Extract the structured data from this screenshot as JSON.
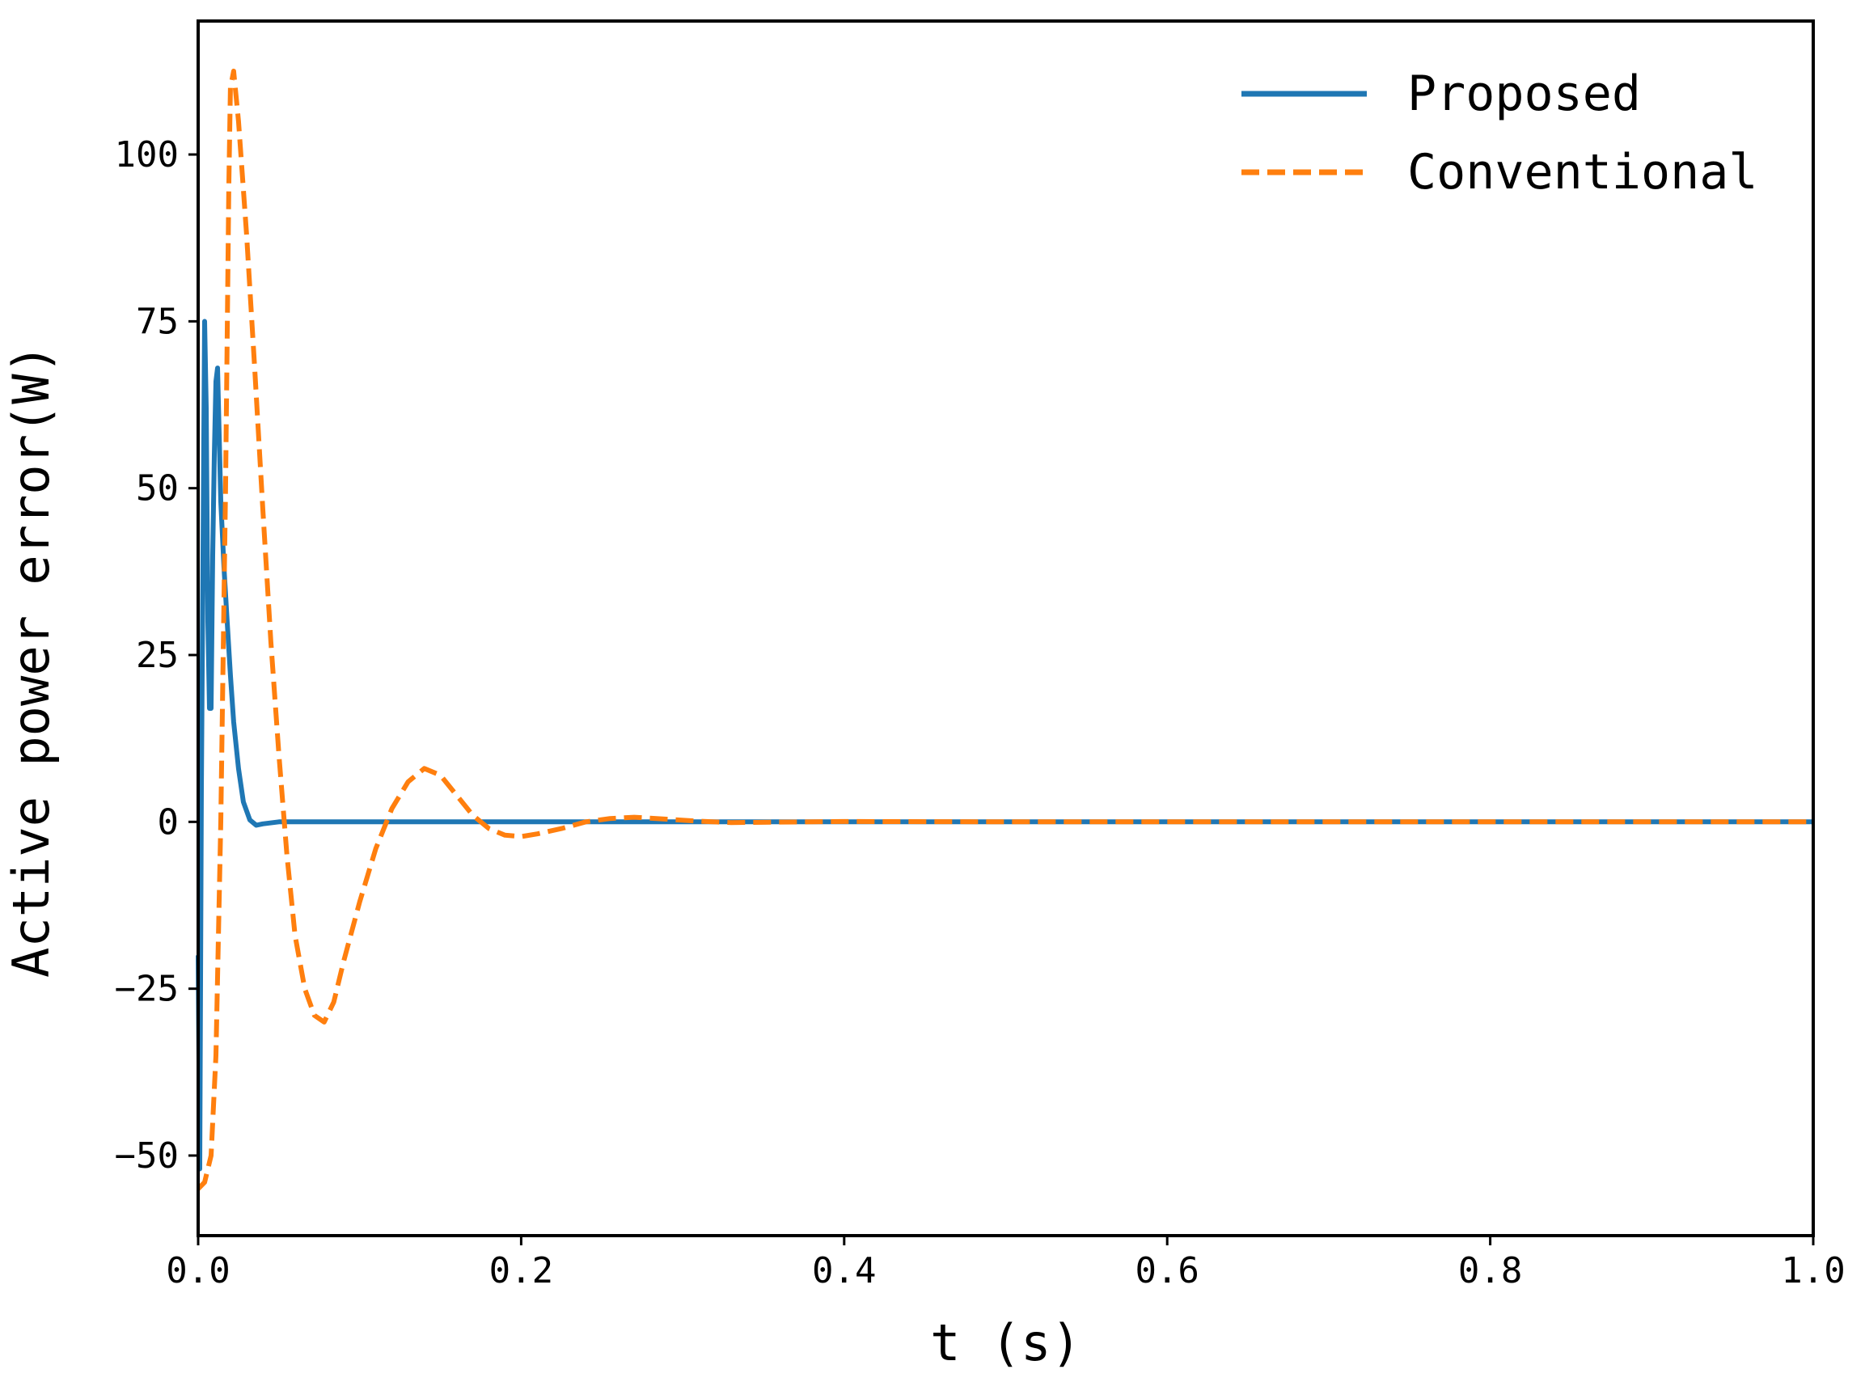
{
  "chart_data": {
    "type": "line",
    "title": "",
    "xlabel": "t (s)",
    "ylabel": "Active power error(W)",
    "xlim": [
      0.0,
      1.0
    ],
    "ylim": [
      -62,
      120
    ],
    "xticks": [
      0.0,
      0.2,
      0.4,
      0.6,
      0.8,
      1.0
    ],
    "xtick_labels": [
      "0.0",
      "0.2",
      "0.4",
      "0.6",
      "0.8",
      "1.0"
    ],
    "yticks": [
      -50,
      -25,
      0,
      25,
      50,
      75,
      100
    ],
    "ytick_labels": [
      "−50",
      "−25",
      "0",
      "25",
      "50",
      "75",
      "100"
    ],
    "grid": false,
    "legend_position": "top-right",
    "series": [
      {
        "name": "Proposed",
        "color": "#1f77b4",
        "style": "solid",
        "points": [
          [
            0.0,
            -20
          ],
          [
            0.001,
            -52
          ],
          [
            0.002,
            5
          ],
          [
            0.004,
            75
          ],
          [
            0.005,
            62
          ],
          [
            0.006,
            30
          ],
          [
            0.007,
            17
          ],
          [
            0.008,
            17
          ],
          [
            0.009,
            40
          ],
          [
            0.01,
            55
          ],
          [
            0.011,
            66
          ],
          [
            0.012,
            68
          ],
          [
            0.013,
            58
          ],
          [
            0.014,
            48
          ],
          [
            0.016,
            38
          ],
          [
            0.018,
            30
          ],
          [
            0.02,
            22
          ],
          [
            0.022,
            15
          ],
          [
            0.025,
            8
          ],
          [
            0.028,
            3
          ],
          [
            0.032,
            0.3
          ],
          [
            0.036,
            -0.5
          ],
          [
            0.04,
            -0.3
          ],
          [
            0.05,
            0
          ],
          [
            1.0,
            0
          ]
        ]
      },
      {
        "name": "Conventional",
        "color": "#ff7f0e",
        "style": "dashed",
        "points": [
          [
            0.0,
            -55
          ],
          [
            0.004,
            -54
          ],
          [
            0.008,
            -50
          ],
          [
            0.011,
            -35
          ],
          [
            0.014,
            0
          ],
          [
            0.017,
            50
          ],
          [
            0.019,
            95
          ],
          [
            0.02,
            110
          ],
          [
            0.022,
            112.5
          ],
          [
            0.025,
            105
          ],
          [
            0.03,
            88
          ],
          [
            0.035,
            68
          ],
          [
            0.04,
            47
          ],
          [
            0.045,
            27
          ],
          [
            0.05,
            10
          ],
          [
            0.055,
            -5
          ],
          [
            0.06,
            -17
          ],
          [
            0.066,
            -25
          ],
          [
            0.072,
            -29
          ],
          [
            0.078,
            -30
          ],
          [
            0.084,
            -27
          ],
          [
            0.09,
            -21
          ],
          [
            0.1,
            -12
          ],
          [
            0.11,
            -4
          ],
          [
            0.12,
            2
          ],
          [
            0.13,
            6
          ],
          [
            0.14,
            8
          ],
          [
            0.15,
            7
          ],
          [
            0.16,
            4
          ],
          [
            0.17,
            1
          ],
          [
            0.18,
            -1
          ],
          [
            0.19,
            -2
          ],
          [
            0.2,
            -2.2
          ],
          [
            0.21,
            -1.8
          ],
          [
            0.225,
            -1
          ],
          [
            0.24,
            0
          ],
          [
            0.255,
            0.5
          ],
          [
            0.27,
            0.7
          ],
          [
            0.29,
            0.4
          ],
          [
            0.31,
            0.1
          ],
          [
            0.33,
            -0.1
          ],
          [
            0.4,
            0.05
          ],
          [
            0.5,
            0
          ],
          [
            1.0,
            0
          ]
        ]
      }
    ]
  }
}
